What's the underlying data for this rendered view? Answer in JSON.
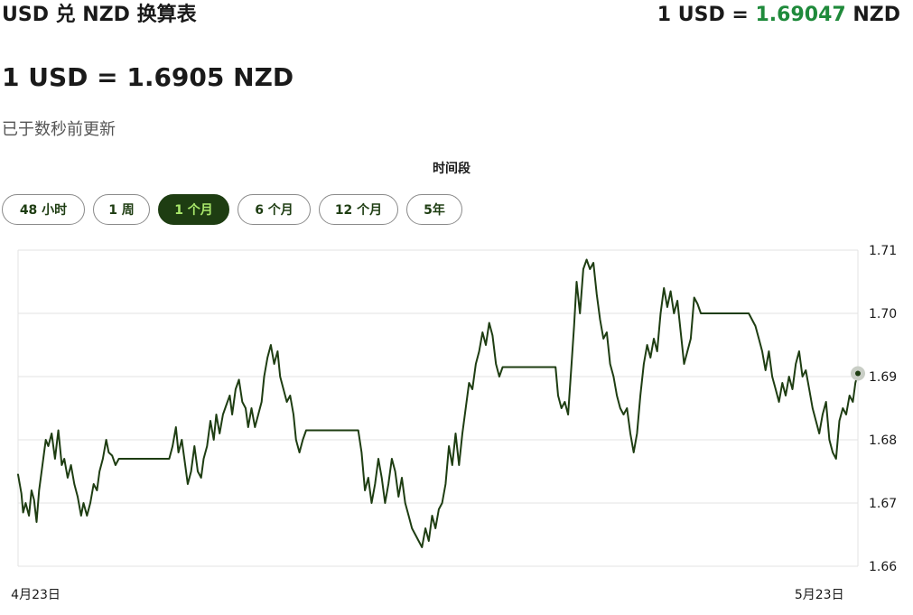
{
  "header": {
    "title": "USD 兑 NZD 换算表",
    "rate_prefix": "1 USD = ",
    "rate_value": "1.69047",
    "rate_suffix": " NZD",
    "accent_color": "#1f8a3b"
  },
  "main_rate": "1 USD = 1.6905 NZD",
  "update_note": "已于数秒前更新",
  "period": {
    "heading": "时间段",
    "options": [
      {
        "label": "48 小时",
        "active": false
      },
      {
        "label": "1 周",
        "active": false
      },
      {
        "label": "1 个月",
        "active": true
      },
      {
        "label": "6 个月",
        "active": false
      },
      {
        "label": "12 个月",
        "active": false
      },
      {
        "label": "5年",
        "active": false
      }
    ],
    "active_bg": "#1e3d12",
    "active_text": "#a9e86b"
  },
  "chart_data": {
    "type": "line",
    "title": "",
    "xlabel": "",
    "ylabel": "",
    "x_tick_labels": [
      "4月23日",
      "5月23日"
    ],
    "y_ticks": [
      "1.66",
      "1.67",
      "1.68",
      "1.69",
      "1.70",
      "1.71"
    ],
    "ylim": [
      1.66,
      1.71
    ],
    "y_axis_side": "right",
    "grid": true,
    "line_color": "#1e3d12",
    "x_range": [
      0,
      100
    ],
    "x_tick_positions": [
      2.1,
      95.4
    ],
    "series": [
      {
        "values": [
          [
            0.0,
            1.6745
          ],
          [
            0.4,
            1.6715
          ],
          [
            0.6,
            1.6685
          ],
          [
            0.9,
            1.67
          ],
          [
            1.3,
            1.668
          ],
          [
            1.6,
            1.672
          ],
          [
            1.9,
            1.6705
          ],
          [
            2.2,
            1.667
          ],
          [
            2.5,
            1.672
          ],
          [
            2.9,
            1.676
          ],
          [
            3.3,
            1.68
          ],
          [
            3.6,
            1.679
          ],
          [
            4.0,
            1.681
          ],
          [
            4.4,
            1.677
          ],
          [
            4.8,
            1.6815
          ],
          [
            5.2,
            1.676
          ],
          [
            5.5,
            1.677
          ],
          [
            5.9,
            1.674
          ],
          [
            6.3,
            1.676
          ],
          [
            6.7,
            1.673
          ],
          [
            7.1,
            1.671
          ],
          [
            7.5,
            1.668
          ],
          [
            7.8,
            1.67
          ],
          [
            8.2,
            1.668
          ],
          [
            8.6,
            1.67
          ],
          [
            9.0,
            1.673
          ],
          [
            9.4,
            1.672
          ],
          [
            9.7,
            1.675
          ],
          [
            10.1,
            1.677
          ],
          [
            10.5,
            1.68
          ],
          [
            10.8,
            1.678
          ],
          [
            11.2,
            1.6775
          ],
          [
            11.6,
            1.676
          ],
          [
            12.0,
            1.677
          ],
          [
            13.0,
            1.677
          ],
          [
            14.0,
            1.677
          ],
          [
            15.0,
            1.677
          ],
          [
            16.0,
            1.677
          ],
          [
            17.0,
            1.677
          ],
          [
            18.0,
            1.677
          ],
          [
            18.4,
            1.679
          ],
          [
            18.8,
            1.682
          ],
          [
            19.1,
            1.678
          ],
          [
            19.5,
            1.68
          ],
          [
            19.9,
            1.676
          ],
          [
            20.2,
            1.673
          ],
          [
            20.6,
            1.675
          ],
          [
            21.0,
            1.679
          ],
          [
            21.4,
            1.675
          ],
          [
            21.8,
            1.674
          ],
          [
            22.1,
            1.677
          ],
          [
            22.5,
            1.679
          ],
          [
            22.9,
            1.683
          ],
          [
            23.3,
            1.68
          ],
          [
            23.6,
            1.684
          ],
          [
            24.0,
            1.681
          ],
          [
            24.4,
            1.684
          ],
          [
            24.8,
            1.6855
          ],
          [
            25.2,
            1.687
          ],
          [
            25.5,
            1.684
          ],
          [
            25.9,
            1.688
          ],
          [
            26.3,
            1.6895
          ],
          [
            26.7,
            1.686
          ],
          [
            27.1,
            1.685
          ],
          [
            27.4,
            1.682
          ],
          [
            27.8,
            1.685
          ],
          [
            28.2,
            1.682
          ],
          [
            28.6,
            1.684
          ],
          [
            29.0,
            1.686
          ],
          [
            29.3,
            1.69
          ],
          [
            29.7,
            1.693
          ],
          [
            30.1,
            1.695
          ],
          [
            30.5,
            1.692
          ],
          [
            30.9,
            1.694
          ],
          [
            31.2,
            1.69
          ],
          [
            31.6,
            1.688
          ],
          [
            32.0,
            1.686
          ],
          [
            32.4,
            1.687
          ],
          [
            32.8,
            1.684
          ],
          [
            33.1,
            1.68
          ],
          [
            33.5,
            1.678
          ],
          [
            33.9,
            1.68
          ],
          [
            34.3,
            1.6815
          ],
          [
            35.0,
            1.6815
          ],
          [
            36.0,
            1.6815
          ],
          [
            37.0,
            1.6815
          ],
          [
            38.0,
            1.6815
          ],
          [
            39.0,
            1.6815
          ],
          [
            40.0,
            1.6815
          ],
          [
            40.5,
            1.6815
          ],
          [
            40.9,
            1.678
          ],
          [
            41.3,
            1.672
          ],
          [
            41.7,
            1.674
          ],
          [
            42.1,
            1.67
          ],
          [
            42.5,
            1.673
          ],
          [
            42.9,
            1.677
          ],
          [
            43.3,
            1.674
          ],
          [
            43.7,
            1.67
          ],
          [
            44.1,
            1.673
          ],
          [
            44.5,
            1.677
          ],
          [
            44.9,
            1.675
          ],
          [
            45.3,
            1.671
          ],
          [
            45.7,
            1.674
          ],
          [
            46.1,
            1.67
          ],
          [
            46.5,
            1.668
          ],
          [
            46.9,
            1.666
          ],
          [
            47.3,
            1.665
          ],
          [
            47.7,
            1.664
          ],
          [
            48.1,
            1.663
          ],
          [
            48.5,
            1.666
          ],
          [
            48.9,
            1.664
          ],
          [
            49.3,
            1.668
          ],
          [
            49.7,
            1.666
          ],
          [
            50.1,
            1.669
          ],
          [
            50.5,
            1.67
          ],
          [
            50.9,
            1.673
          ],
          [
            51.3,
            1.679
          ],
          [
            51.7,
            1.676
          ],
          [
            52.1,
            1.681
          ],
          [
            52.5,
            1.676
          ],
          [
            52.9,
            1.681
          ],
          [
            53.3,
            1.685
          ],
          [
            53.7,
            1.689
          ],
          [
            54.1,
            1.688
          ],
          [
            54.5,
            1.692
          ],
          [
            54.9,
            1.694
          ],
          [
            55.3,
            1.697
          ],
          [
            55.7,
            1.695
          ],
          [
            56.1,
            1.6985
          ],
          [
            56.5,
            1.6965
          ],
          [
            56.9,
            1.692
          ],
          [
            57.3,
            1.69
          ],
          [
            57.7,
            1.6915
          ],
          [
            58.5,
            1.6915
          ],
          [
            59.5,
            1.6915
          ],
          [
            60.5,
            1.6915
          ],
          [
            61.5,
            1.6915
          ],
          [
            62.5,
            1.6915
          ],
          [
            63.5,
            1.6915
          ],
          [
            64.0,
            1.6915
          ],
          [
            64.3,
            1.687
          ],
          [
            64.7,
            1.685
          ],
          [
            65.1,
            1.686
          ],
          [
            65.5,
            1.684
          ],
          [
            65.9,
            1.692
          ],
          [
            66.2,
            1.698
          ],
          [
            66.5,
            1.705
          ],
          [
            66.9,
            1.7
          ],
          [
            67.3,
            1.707
          ],
          [
            67.7,
            1.7085
          ],
          [
            68.1,
            1.707
          ],
          [
            68.5,
            1.708
          ],
          [
            68.9,
            1.703
          ],
          [
            69.3,
            1.699
          ],
          [
            69.7,
            1.696
          ],
          [
            70.1,
            1.697
          ],
          [
            70.5,
            1.692
          ],
          [
            70.9,
            1.69
          ],
          [
            71.3,
            1.687
          ],
          [
            71.7,
            1.685
          ],
          [
            72.1,
            1.684
          ],
          [
            72.5,
            1.685
          ],
          [
            72.9,
            1.681
          ],
          [
            73.3,
            1.678
          ],
          [
            73.7,
            1.681
          ],
          [
            74.1,
            1.687
          ],
          [
            74.5,
            1.692
          ],
          [
            74.9,
            1.695
          ],
          [
            75.3,
            1.693
          ],
          [
            75.7,
            1.696
          ],
          [
            76.1,
            1.694
          ],
          [
            76.5,
            1.7
          ],
          [
            76.9,
            1.704
          ],
          [
            77.3,
            1.701
          ],
          [
            77.7,
            1.7035
          ],
          [
            78.1,
            1.7
          ],
          [
            78.5,
            1.702
          ],
          [
            78.9,
            1.697
          ],
          [
            79.3,
            1.692
          ],
          [
            79.7,
            1.694
          ],
          [
            80.1,
            1.696
          ],
          [
            80.5,
            1.7025
          ],
          [
            80.9,
            1.7015
          ],
          [
            81.3,
            1.7
          ],
          [
            82.0,
            1.7
          ],
          [
            83.0,
            1.7
          ],
          [
            84.0,
            1.7
          ],
          [
            85.0,
            1.7
          ],
          [
            86.0,
            1.7
          ],
          [
            87.0,
            1.7
          ],
          [
            87.4,
            1.699
          ],
          [
            87.8,
            1.698
          ],
          [
            88.2,
            1.696
          ],
          [
            88.6,
            1.694
          ],
          [
            89.0,
            1.691
          ],
          [
            89.4,
            1.694
          ],
          [
            89.8,
            1.69
          ],
          [
            90.2,
            1.688
          ],
          [
            90.6,
            1.686
          ],
          [
            91.0,
            1.689
          ],
          [
            91.4,
            1.687
          ],
          [
            91.8,
            1.69
          ],
          [
            92.2,
            1.688
          ],
          [
            92.6,
            1.692
          ],
          [
            93.0,
            1.694
          ],
          [
            93.4,
            1.69
          ],
          [
            93.8,
            1.691
          ],
          [
            94.2,
            1.688
          ],
          [
            94.6,
            1.685
          ],
          [
            95.0,
            1.683
          ],
          [
            95.4,
            1.681
          ],
          [
            95.8,
            1.684
          ],
          [
            96.2,
            1.686
          ],
          [
            96.6,
            1.68
          ],
          [
            97.0,
            1.678
          ],
          [
            97.4,
            1.677
          ],
          [
            97.8,
            1.683
          ],
          [
            98.2,
            1.685
          ],
          [
            98.6,
            1.684
          ],
          [
            99.0,
            1.687
          ],
          [
            99.4,
            1.686
          ],
          [
            99.7,
            1.689
          ],
          [
            100.0,
            1.6905
          ]
        ]
      }
    ]
  }
}
